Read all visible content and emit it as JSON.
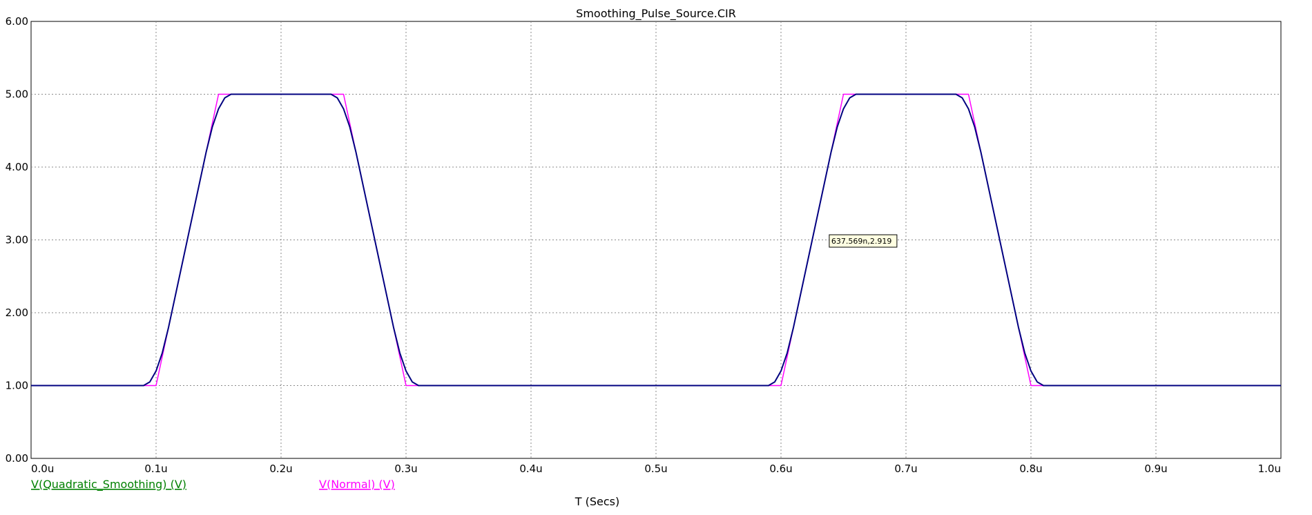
{
  "chart_data": {
    "type": "line",
    "title": "Smoothing_Pulse_Source.CIR",
    "xlabel": "T (Secs)",
    "ylabel": "",
    "xlim": [
      0,
      1.0
    ],
    "ylim": [
      0,
      6.0
    ],
    "x_unit": "u",
    "x_ticks": [
      "0.0u",
      "0.1u",
      "0.2u",
      "0.3u",
      "0.4u",
      "0.5u",
      "0.6u",
      "0.7u",
      "0.8u",
      "0.9u",
      "1.0u"
    ],
    "y_ticks": [
      "0.00",
      "1.00",
      "2.00",
      "3.00",
      "4.00",
      "5.00",
      "6.00"
    ],
    "grid": true,
    "legend_placement": "bottom-left",
    "series": [
      {
        "name": "V(Quadratic_Smoothing) (V)",
        "color": "#000080",
        "legend_color": "#008000",
        "x": [
          0,
          0.09,
          0.095,
          0.1,
          0.105,
          0.11,
          0.12,
          0.13,
          0.14,
          0.145,
          0.15,
          0.155,
          0.16,
          0.24,
          0.245,
          0.25,
          0.255,
          0.26,
          0.27,
          0.28,
          0.29,
          0.295,
          0.3,
          0.305,
          0.31,
          0.59,
          0.595,
          0.6,
          0.605,
          0.61,
          0.62,
          0.63,
          0.64,
          0.645,
          0.65,
          0.655,
          0.66,
          0.74,
          0.745,
          0.75,
          0.755,
          0.76,
          0.77,
          0.78,
          0.79,
          0.795,
          0.8,
          0.805,
          0.81,
          1.0
        ],
        "y": [
          1,
          1,
          1.05,
          1.2,
          1.45,
          1.8,
          2.6,
          3.4,
          4.2,
          4.55,
          4.8,
          4.95,
          5,
          5,
          4.95,
          4.8,
          4.55,
          4.2,
          3.4,
          2.6,
          1.8,
          1.45,
          1.2,
          1.05,
          1,
          1,
          1.05,
          1.2,
          1.45,
          1.8,
          2.6,
          3.4,
          4.2,
          4.55,
          4.8,
          4.95,
          5,
          5,
          4.95,
          4.8,
          4.55,
          4.2,
          3.4,
          2.6,
          1.8,
          1.45,
          1.2,
          1.05,
          1,
          1
        ]
      },
      {
        "name": "V(Normal) (V)",
        "color": "#ff00ff",
        "legend_color": "#ff00ff",
        "x": [
          0,
          0.1,
          0.15,
          0.25,
          0.3,
          0.6,
          0.65,
          0.75,
          0.8,
          1.0
        ],
        "y": [
          1,
          1,
          5,
          5,
          1,
          1,
          5,
          5,
          1,
          1
        ]
      }
    ],
    "annotations": [
      {
        "text": "637.569n,2.919",
        "x": 0.637569,
        "y": 2.919
      }
    ]
  }
}
